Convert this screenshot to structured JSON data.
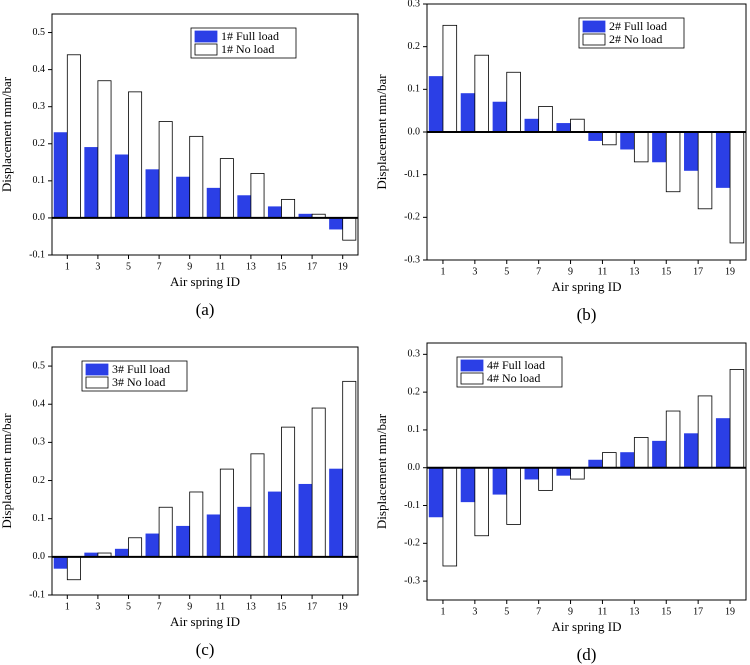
{
  "chart_data": [
    {
      "type": "bar",
      "caption": "(a)",
      "xlabel": "Air spring ID",
      "ylabel": "Displacement mm/bar",
      "categories": [
        "1",
        "3",
        "5",
        "7",
        "9",
        "11",
        "13",
        "15",
        "17",
        "19"
      ],
      "series": [
        {
          "name": "1# Full load",
          "color": "#2b3fe6",
          "values": [
            0.23,
            0.19,
            0.17,
            0.13,
            0.11,
            0.08,
            0.06,
            0.03,
            0.01,
            -0.03
          ]
        },
        {
          "name": "1# No load",
          "color": "#ffffff",
          "values": [
            0.44,
            0.37,
            0.34,
            0.26,
            0.22,
            0.16,
            0.12,
            0.05,
            0.01,
            -0.06
          ]
        }
      ],
      "ylim": [
        -0.1,
        0.55
      ],
      "yticks": [
        -0.1,
        {
          "value": 0,
          "label": "0.0"
        },
        0.1,
        0.2,
        0.3,
        0.4,
        0.5
      ],
      "legend": "upper right"
    },
    {
      "type": "bar",
      "caption": "(b)",
      "xlabel": "Air spring ID",
      "ylabel": "Displacement mm/bar",
      "categories": [
        "1",
        "3",
        "5",
        "7",
        "9",
        "11",
        "13",
        "15",
        "17",
        "19"
      ],
      "series": [
        {
          "name": "2# Full load",
          "color": "#2b3fe6",
          "values": [
            0.13,
            0.09,
            0.07,
            0.03,
            0.02,
            -0.02,
            -0.04,
            -0.07,
            -0.09,
            -0.13
          ]
        },
        {
          "name": "2# No load",
          "color": "#ffffff",
          "values": [
            0.25,
            0.18,
            0.14,
            0.06,
            0.03,
            -0.03,
            -0.07,
            -0.14,
            -0.18,
            -0.26
          ]
        }
      ],
      "ylim": [
        -0.3,
        0.3
      ],
      "yticks": [
        -0.3,
        -0.2,
        -0.1,
        {
          "value": 0,
          "label": "0.0"
        },
        0.1,
        0.2,
        0.3
      ],
      "legend": "upper right"
    },
    {
      "type": "bar",
      "caption": "(c)",
      "xlabel": "Air spring ID",
      "ylabel": "Displacement mm/bar",
      "categories": [
        "1",
        "3",
        "5",
        "7",
        "9",
        "11",
        "13",
        "15",
        "17",
        "19"
      ],
      "series": [
        {
          "name": "3# Full load",
          "color": "#2b3fe6",
          "values": [
            -0.03,
            0.01,
            0.02,
            0.06,
            0.08,
            0.11,
            0.13,
            0.17,
            0.19,
            0.23
          ]
        },
        {
          "name": "3# No load",
          "color": "#ffffff",
          "values": [
            -0.06,
            0.01,
            0.05,
            0.13,
            0.17,
            0.23,
            0.27,
            0.34,
            0.39,
            0.46
          ]
        }
      ],
      "ylim": [
        -0.1,
        0.55
      ],
      "yticks": [
        -0.1,
        {
          "value": 0,
          "label": "0.0"
        },
        0.1,
        0.2,
        0.3,
        0.4,
        0.5
      ],
      "legend": "upper left"
    },
    {
      "type": "bar",
      "caption": "(d)",
      "xlabel": "Air spring ID",
      "ylabel": "Displacement mm/bar",
      "categories": [
        "1",
        "3",
        "5",
        "7",
        "9",
        "11",
        "13",
        "15",
        "17",
        "19"
      ],
      "series": [
        {
          "name": "4# Full load",
          "color": "#2b3fe6",
          "values": [
            -0.13,
            -0.09,
            -0.07,
            -0.03,
            -0.02,
            0.02,
            0.04,
            0.07,
            0.09,
            0.13
          ]
        },
        {
          "name": "4# No load",
          "color": "#ffffff",
          "values": [
            -0.26,
            -0.18,
            -0.15,
            -0.06,
            -0.03,
            0.04,
            0.08,
            0.15,
            0.19,
            0.26
          ]
        }
      ],
      "ylim": [
        -0.35,
        0.33
      ],
      "yticks": [
        -0.3,
        -0.2,
        -0.1,
        {
          "value": 0,
          "label": "0.0"
        },
        0.1,
        0.2,
        0.3
      ],
      "legend": "upper left"
    }
  ]
}
